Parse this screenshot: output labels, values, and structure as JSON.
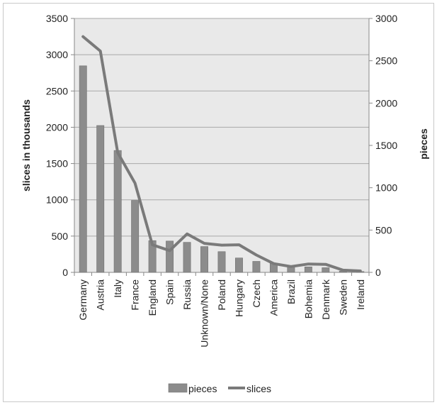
{
  "chart_data": {
    "type": "bar",
    "categories": [
      "Germany",
      "Austria",
      "Italy",
      "France",
      "England",
      "Spain",
      "Russia",
      "Unknown/None",
      "Poland",
      "Hungary",
      "Czech",
      "America",
      "Brazil",
      "Bohemia",
      "Denmark",
      "Sweden",
      "Ireland"
    ],
    "series": [
      {
        "name": "pieces",
        "type": "bar",
        "axis": "right",
        "color": "#8c8c8c",
        "values": [
          2440,
          1735,
          1440,
          850,
          375,
          370,
          355,
          305,
          245,
          170,
          130,
          105,
          75,
          65,
          55,
          15,
          10
        ]
      },
      {
        "name": "slices",
        "type": "line",
        "axis": "left",
        "color": "#7a7a7a",
        "values": [
          3250,
          3050,
          1650,
          1230,
          380,
          300,
          530,
          400,
          375,
          380,
          240,
          120,
          80,
          115,
          110,
          30,
          20
        ]
      }
    ],
    "ylabel": "slices in thousands",
    "ylabel_right": "pieces",
    "ylim": [
      0,
      3500
    ],
    "ylim_right": [
      0,
      3000
    ],
    "yticks": [
      "0",
      "500",
      "1000",
      "1500",
      "2000",
      "2500",
      "3000",
      "3500"
    ],
    "yticks_right": [
      "0",
      "500",
      "1000",
      "1500",
      "2000",
      "2500",
      "3000"
    ],
    "grid": true,
    "legend": "bottom",
    "plot_background": "#e9e9e9"
  }
}
